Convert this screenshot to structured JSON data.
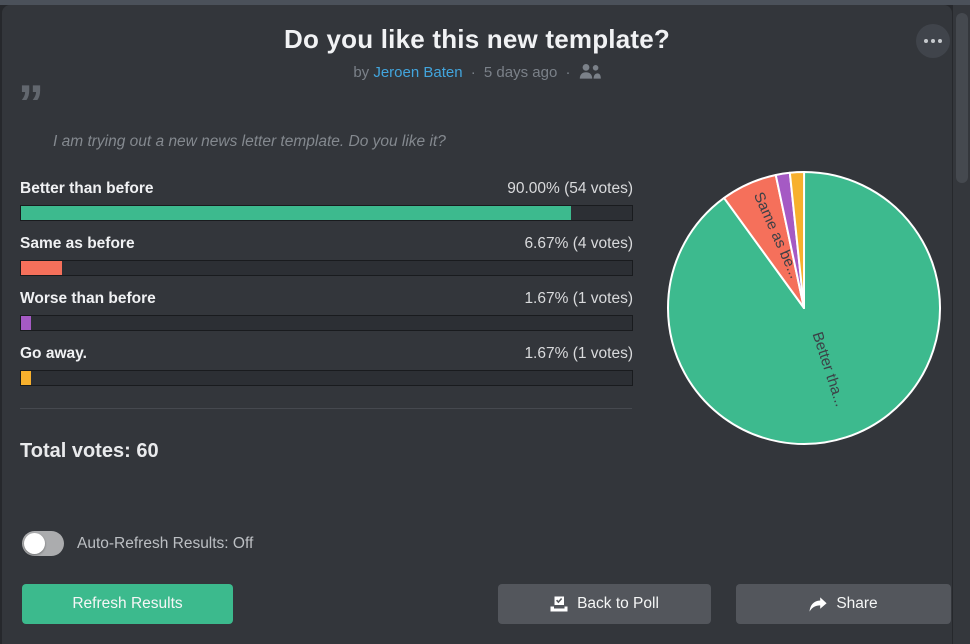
{
  "header": {
    "title": "Do you like this new template?",
    "byline": {
      "prefix": "by",
      "author": "Jeroen Baten",
      "separator": "·",
      "age": "5 days ago"
    }
  },
  "quote": {
    "mark": "”",
    "text": "I am trying out a new news letter template. Do you like it?"
  },
  "results": {
    "options": [
      {
        "label": "Better than before",
        "value_text": "90.00% (54 votes)",
        "percent": 90.0,
        "votes": 54,
        "color": "#3dba8e"
      },
      {
        "label": "Same as before",
        "value_text": "6.67% (4 votes)",
        "percent": 6.67,
        "votes": 4,
        "color": "#f5705b"
      },
      {
        "label": "Worse than before",
        "value_text": "1.67% (1 votes)",
        "percent": 1.67,
        "votes": 1,
        "color": "#a55ac4"
      },
      {
        "label": "Go away.",
        "value_text": "1.67% (1 votes)",
        "percent": 1.67,
        "votes": 1,
        "color": "#f7b02d"
      }
    ],
    "total_label": "Total votes:",
    "total_value": "60"
  },
  "controls": {
    "auto_refresh_label": "Auto-Refresh Results: Off",
    "toggle_state": "off",
    "refresh_button": "Refresh Results",
    "back_button": "Back to Poll",
    "share_button": "Share"
  },
  "icons": {
    "menu": "ellipsis-icon",
    "voters": "people-icon",
    "quote": "quote-icon",
    "back": "ballot-box-icon",
    "share": "share-arrow-icon"
  },
  "colors": {
    "accent_green": "#3cba8d",
    "card_bg": "#33363b",
    "top_strip": "#4b515a",
    "author_link": "#42a5dd",
    "pie_label_text": "#3c4046",
    "slice_border": "#ffffff"
  },
  "chart_data": {
    "type": "pie",
    "title": "",
    "labels": [
      "Better than before",
      "Same as before",
      "Worse than before",
      "Go away."
    ],
    "values": [
      90.0,
      6.67,
      1.67,
      1.67
    ],
    "votes": [
      54,
      4,
      1,
      1
    ],
    "colors": [
      "#3dba8e",
      "#f5705b",
      "#a55ac4",
      "#f7b02d"
    ],
    "slice_labels_shown": [
      "Better tha...",
      "Same as be...",
      "",
      ""
    ],
    "start_angle_deg": 0,
    "direction": "clockwise",
    "legend": "none"
  }
}
